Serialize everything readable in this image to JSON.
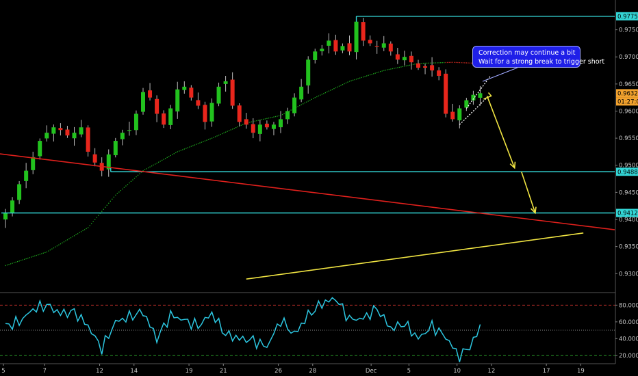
{
  "colors": {
    "background": "#000000",
    "bull": "#22c21e",
    "bear": "#e8261c",
    "wick": "#bdbdbd",
    "level": "#33d6d6",
    "trend_red": "#e0201c",
    "arrow": "#f0e442",
    "ma_green": "#1fae1f",
    "ma_red": "#d22a20",
    "rsi": "#2cc6e0",
    "rsi_upper": "#c0302a",
    "rsi_lower": "#2aa02a",
    "rsi_mid": "#888888",
    "axis_text": "#c8c8c8",
    "badge_price": "#f2a22e"
  },
  "annotation": {
    "line1": "Correction may continue a bit",
    "line2": "Wait for a strong break to trigger short"
  },
  "chart_data": [
    {
      "type": "candlestick",
      "title": "",
      "ylim": [
        0.9265,
        0.9805
      ],
      "y_ticks": [
        "0.98000",
        "0.97500",
        "0.97000",
        "0.96500",
        "0.96000",
        "0.95500",
        "0.95000",
        "0.94500",
        "0.94000",
        "0.93500",
        "0.93000"
      ],
      "x_ticks": [
        "5",
        "7",
        "12",
        "14",
        "19",
        "21",
        "26",
        "28",
        "Dec",
        "5",
        "10",
        "12",
        "17",
        "19"
      ],
      "price_labels": {
        "resistance": "0.97750",
        "current_price": "0.96329",
        "countdown": "01:27:02",
        "support_1": "0.94880",
        "support_2": "0.94120"
      },
      "levels": [
        0.9775,
        0.9488,
        0.9412
      ],
      "close_path": [
        [
          0,
          0.9412
        ],
        [
          1,
          0.9435
        ],
        [
          2,
          0.9465
        ],
        [
          3,
          0.949
        ],
        [
          4,
          0.9515
        ],
        [
          5,
          0.9545
        ],
        [
          6,
          0.956
        ],
        [
          7,
          0.957
        ],
        [
          8,
          0.9565
        ],
        [
          9,
          0.9555
        ],
        [
          10,
          0.956
        ],
        [
          11,
          0.957
        ],
        [
          12,
          0.9525
        ],
        [
          13,
          0.9505
        ],
        [
          14,
          0.949
        ],
        [
          15,
          0.952
        ],
        [
          16,
          0.9545
        ],
        [
          17,
          0.956
        ],
        [
          18,
          0.9565
        ],
        [
          19,
          0.9595
        ],
        [
          20,
          0.9635
        ],
        [
          21,
          0.9625
        ],
        [
          22,
          0.9595
        ],
        [
          23,
          0.9575
        ],
        [
          24,
          0.9605
        ],
        [
          25,
          0.964
        ],
        [
          26,
          0.9645
        ],
        [
          27,
          0.9625
        ],
        [
          28,
          0.961
        ],
        [
          29,
          0.958
        ],
        [
          30,
          0.9615
        ],
        [
          31,
          0.9645
        ],
        [
          32,
          0.9655
        ],
        [
          33,
          0.961
        ],
        [
          34,
          0.958
        ],
        [
          35,
          0.9575
        ],
        [
          36,
          0.956
        ],
        [
          37,
          0.9575
        ],
        [
          38,
          0.957
        ],
        [
          39,
          0.9575
        ],
        [
          40,
          0.9585
        ],
        [
          41,
          0.96
        ],
        [
          42,
          0.9625
        ],
        [
          43,
          0.9645
        ],
        [
          44,
          0.9695
        ],
        [
          45,
          0.971
        ],
        [
          46,
          0.9715
        ],
        [
          47,
          0.973
        ],
        [
          48,
          0.971
        ],
        [
          49,
          0.972
        ],
        [
          50,
          0.971
        ],
        [
          51,
          0.9765
        ],
        [
          52,
          0.973
        ],
        [
          53,
          0.9725
        ],
        [
          54,
          0.972
        ],
        [
          55,
          0.9725
        ],
        [
          56,
          0.971
        ],
        [
          57,
          0.9695
        ],
        [
          58,
          0.97
        ],
        [
          59,
          0.969
        ],
        [
          60,
          0.968
        ],
        [
          61,
          0.968
        ],
        [
          62,
          0.9675
        ],
        [
          63,
          0.9665
        ],
        [
          64,
          0.9595
        ],
        [
          65,
          0.9585
        ],
        [
          66,
          0.9605
        ],
        [
          67,
          0.962
        ],
        [
          68,
          0.963
        ],
        [
          69,
          0.9633
        ]
      ],
      "moving_average": [
        [
          0,
          0.9315
        ],
        [
          6,
          0.934
        ],
        [
          12,
          0.9385
        ],
        [
          16,
          0.9445
        ],
        [
          20,
          0.949
        ],
        [
          25,
          0.9525
        ],
        [
          30,
          0.955
        ],
        [
          35,
          0.9578
        ],
        [
          40,
          0.9592
        ],
        [
          45,
          0.9625
        ],
        [
          50,
          0.9655
        ],
        [
          55,
          0.9675
        ],
        [
          60,
          0.9688
        ],
        [
          65,
          0.969
        ],
        [
          69,
          0.9688
        ]
      ],
      "trendline_red": [
        [
          0,
          0.9521
        ],
        [
          92,
          0.9381
        ]
      ],
      "projection_arrows": [
        [
          [
            70,
            0.9628
          ],
          [
            74,
            0.9495
          ]
        ],
        [
          [
            75,
            0.9488
          ],
          [
            77,
            0.9412
          ]
        ]
      ],
      "channel": [
        [
          [
            66,
            0.9575
          ],
          [
            70,
            0.9625
          ]
        ],
        [
          [
            67,
            0.9605
          ],
          [
            70.5,
            0.9665
          ]
        ]
      ],
      "ascending_line": [
        [
          35,
          0.929
        ],
        [
          84,
          0.9375
        ]
      ]
    },
    {
      "type": "line",
      "title": "",
      "ylim": [
        10,
        95
      ],
      "y_ticks": [
        "80.0000",
        "60.0000",
        "40.0000",
        "20.0000"
      ],
      "levels": {
        "upper": 80,
        "middle": 50,
        "lower": 20
      },
      "x": [
        0,
        2,
        4,
        6,
        8,
        10,
        12,
        14,
        16,
        18,
        20,
        22,
        24,
        26,
        28,
        30,
        32,
        34,
        36,
        38,
        40,
        42,
        44,
        46,
        48,
        50,
        52,
        54,
        56,
        58,
        60,
        62,
        64,
        66,
        68,
        69
      ],
      "values": [
        55,
        60,
        75,
        80,
        70,
        72,
        55,
        28,
        60,
        66,
        72,
        40,
        68,
        62,
        55,
        70,
        45,
        40,
        38,
        30,
        62,
        45,
        68,
        82,
        88,
        63,
        64,
        76,
        52,
        58,
        40,
        55,
        42,
        18,
        36,
        55
      ]
    }
  ]
}
